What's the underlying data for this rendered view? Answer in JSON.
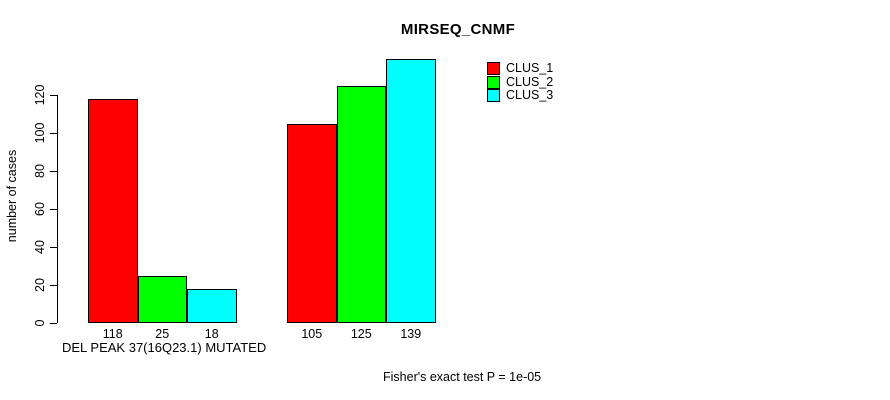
{
  "chart_data": {
    "type": "bar",
    "title": "MIRSEQ_CNMF",
    "ylabel": "number of cases",
    "xlabel": "DEL PEAK 37(16Q23.1) MUTATED",
    "categories": [
      "DEL PEAK 37(16Q23.1) MUTATED",
      ""
    ],
    "series": [
      {
        "name": "CLUS_1",
        "color": "#ff0000",
        "values": [
          118,
          105
        ]
      },
      {
        "name": "CLUS_2",
        "color": "#00ff00",
        "values": [
          25,
          125
        ]
      },
      {
        "name": "CLUS_3",
        "color": "#00ffff",
        "values": [
          18,
          139
        ]
      }
    ],
    "bar_value_labels": [
      [
        118,
        25,
        18
      ],
      [
        105,
        125,
        139
      ]
    ],
    "yticks": [
      0,
      20,
      40,
      60,
      80,
      100,
      120
    ],
    "ylim": [
      0,
      140
    ],
    "grid": false,
    "legend_position": "top-right",
    "annotation": "Fisher's exact test P = 1e-05",
    "bar_border_color": "#000000",
    "axis_color": "#000000"
  }
}
